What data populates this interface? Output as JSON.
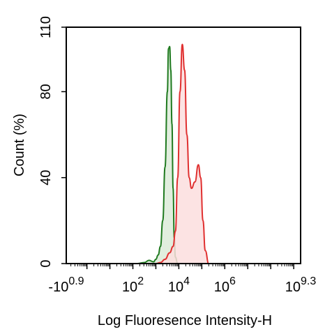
{
  "chart_data": {
    "type": "area",
    "title": "",
    "xlabel": "Log Fluoresence Intensity-H",
    "ylabel": "Count  (%)",
    "xscale": "log",
    "ylim": [
      0,
      110
    ],
    "xlim_log10": [
      -0.9,
      9.3
    ],
    "y_ticks": [
      0,
      40,
      80,
      110
    ],
    "x_tick_labels": [
      {
        "log": -0.9,
        "base": "-10",
        "exp": "0.9"
      },
      {
        "log": 2,
        "base": "10",
        "exp": "2"
      },
      {
        "log": 4,
        "base": "10",
        "exp": "4"
      },
      {
        "log": 6,
        "base": "10",
        "exp": "6"
      },
      {
        "log": 9.3,
        "base": "10",
        "exp": "9.3"
      }
    ],
    "grid": false,
    "legend": "none",
    "series": [
      {
        "color": "#1f7a1f",
        "fill": "#dcebd8",
        "points_log10": [
          [
            2.2,
            0
          ],
          [
            2.5,
            0.5
          ],
          [
            2.7,
            1.5
          ],
          [
            2.9,
            0.8
          ],
          [
            3.0,
            2
          ],
          [
            3.1,
            4
          ],
          [
            3.2,
            8
          ],
          [
            3.3,
            20
          ],
          [
            3.4,
            45
          ],
          [
            3.5,
            80
          ],
          [
            3.55,
            100
          ],
          [
            3.6,
            101
          ],
          [
            3.65,
            90
          ],
          [
            3.7,
            65
          ],
          [
            3.75,
            35
          ],
          [
            3.8,
            12
          ],
          [
            3.85,
            3
          ],
          [
            3.95,
            0
          ]
        ]
      },
      {
        "color": "#e03030",
        "fill": "#fbdede",
        "points_log10": [
          [
            3.0,
            0
          ],
          [
            3.2,
            0.5
          ],
          [
            3.4,
            2
          ],
          [
            3.6,
            5
          ],
          [
            3.75,
            8
          ],
          [
            3.85,
            15
          ],
          [
            3.95,
            40
          ],
          [
            4.05,
            80
          ],
          [
            4.15,
            102
          ],
          [
            4.25,
            90
          ],
          [
            4.35,
            60
          ],
          [
            4.45,
            40
          ],
          [
            4.55,
            35
          ],
          [
            4.7,
            38
          ],
          [
            4.85,
            46
          ],
          [
            4.95,
            40
          ],
          [
            5.05,
            20
          ],
          [
            5.15,
            6
          ],
          [
            5.3,
            0
          ]
        ]
      }
    ]
  }
}
